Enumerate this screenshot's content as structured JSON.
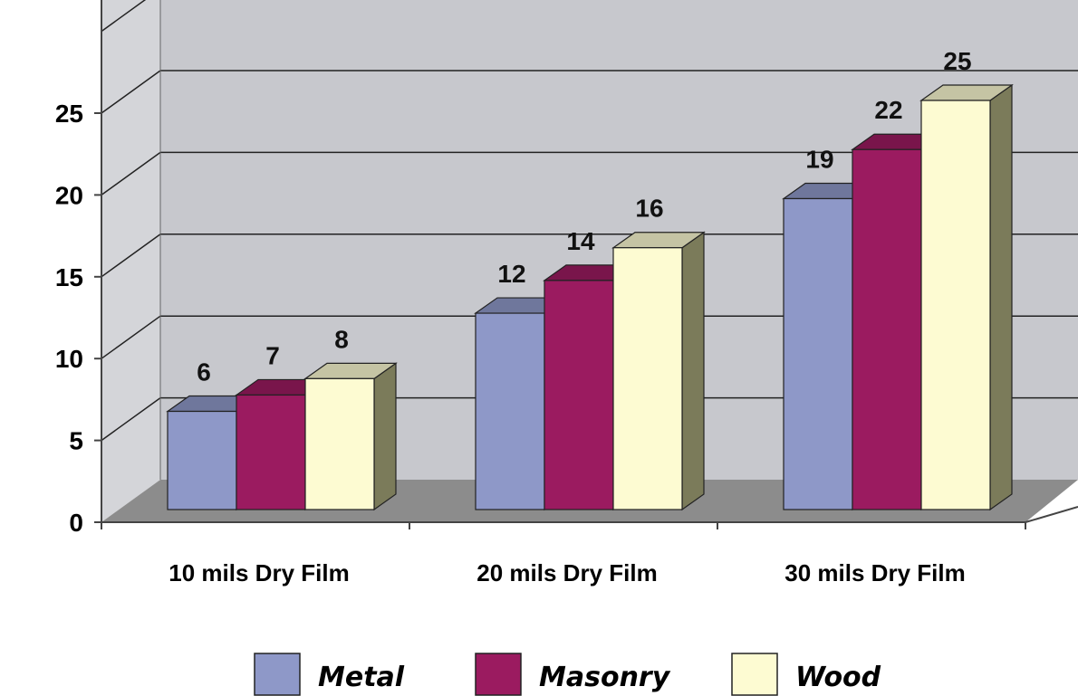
{
  "chart_data": {
    "type": "bar",
    "title": "",
    "xlabel": "",
    "ylabel": "",
    "categories": [
      "10 mils Dry Film",
      "20 mils Dry Film",
      "30 mils Dry Film"
    ],
    "series": [
      {
        "name": "Metal",
        "values": [
          6,
          12,
          19
        ],
        "color": "#8e98c8"
      },
      {
        "name": "Masonry",
        "values": [
          7,
          14,
          22
        ],
        "color": "#9b1b60"
      },
      {
        "name": "Wood",
        "values": [
          8,
          16,
          25
        ],
        "color": "#fdfbd2"
      }
    ],
    "yticks": [
      0,
      5,
      10,
      15,
      20,
      25
    ],
    "ylim": [
      0,
      28
    ],
    "grid": true,
    "style": "3d-bar",
    "legend": "bottom"
  }
}
